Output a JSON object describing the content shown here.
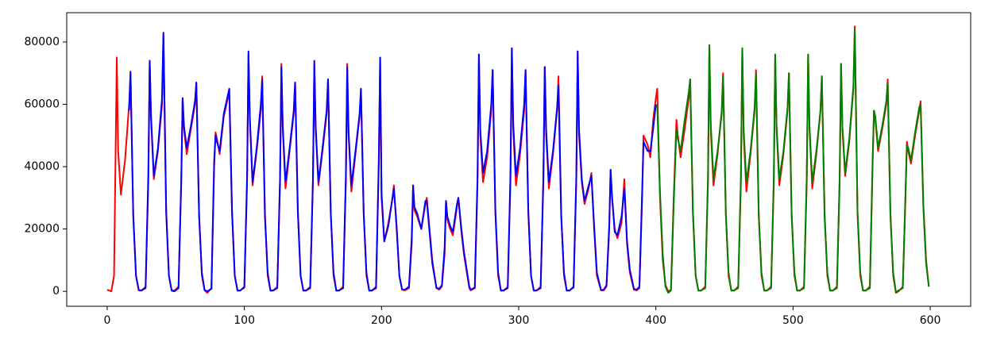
{
  "chart_data": {
    "type": "line",
    "xlim": [
      -29.5,
      629.5
    ],
    "xticks": [
      0,
      100,
      200,
      300,
      400,
      500,
      600
    ],
    "ylim": [
      -4800,
      89400
    ],
    "yticks": [
      0,
      20000,
      40000,
      60000,
      80000
    ],
    "series": [
      {
        "color": "#ff0000",
        "x": [
          0,
          3,
          5,
          6,
          7,
          8,
          10,
          13,
          16,
          17,
          19,
          21,
          23,
          25,
          28,
          30,
          31,
          32,
          34,
          37,
          40,
          41,
          43,
          45,
          47,
          49,
          52,
          54,
          55,
          56,
          58,
          61,
          64,
          65,
          67,
          69,
          71,
          73,
          76,
          78,
          79,
          80,
          82,
          85,
          88,
          89,
          91,
          93,
          95,
          97,
          100,
          102,
          103,
          104,
          106,
          109,
          112,
          113,
          115,
          117,
          119,
          121,
          124,
          126,
          127,
          128,
          130,
          133,
          136,
          137,
          139,
          141,
          143,
          145,
          148,
          150,
          151,
          152,
          154,
          157,
          160,
          161,
          163,
          165,
          167,
          169,
          172,
          174,
          175,
          176,
          178,
          181,
          184,
          185,
          187,
          189,
          191,
          193,
          196,
          198,
          199,
          200,
          202,
          205,
          208,
          209,
          211,
          213,
          215,
          217,
          220,
          222,
          223,
          224,
          226,
          229,
          232,
          233,
          235,
          237,
          240,
          242,
          244,
          246,
          247,
          248,
          250,
          252,
          255,
          256,
          258,
          260,
          264,
          265,
          268,
          270,
          271,
          272,
          274,
          277,
          280,
          281,
          283,
          285,
          287,
          289,
          292,
          294,
          295,
          296,
          298,
          301,
          304,
          305,
          307,
          309,
          311,
          313,
          316,
          318,
          319,
          320,
          322,
          325,
          328,
          329,
          331,
          333,
          335,
          337,
          340,
          342,
          343,
          344,
          346,
          348,
          351,
          353,
          355,
          357,
          360,
          362,
          364,
          366,
          367,
          368,
          370,
          372,
          375,
          377,
          379,
          381,
          384,
          386,
          388,
          390,
          391,
          392,
          394,
          396,
          398,
          400,
          401,
          403,
          405,
          407,
          409,
          411,
          413,
          415,
          416,
          418,
          421,
          424,
          425,
          427,
          429,
          431,
          433,
          436,
          438,
          439,
          440,
          442,
          445,
          448,
          449,
          451,
          453,
          455,
          457,
          460,
          462,
          463,
          464,
          466,
          469,
          472,
          473,
          475,
          477,
          479,
          481,
          484,
          486,
          487,
          488,
          490,
          493,
          496,
          497,
          499,
          501,
          503,
          505,
          508,
          510,
          511,
          512,
          514,
          517,
          520,
          521,
          523,
          525,
          527,
          529,
          532,
          534,
          535,
          536,
          538,
          541,
          544,
          545,
          547,
          549,
          551,
          553,
          556,
          558,
          559,
          560,
          562,
          565,
          568,
          569,
          571,
          573,
          575,
          577,
          580,
          582,
          583,
          584,
          586,
          589,
          592,
          593,
          595,
          597,
          599
        ],
        "values": [
          500,
          0,
          5000,
          40000,
          75000,
          45000,
          31000,
          42000,
          60000,
          70000,
          25000,
          5000,
          300,
          200,
          1500,
          35000,
          74000,
          55000,
          36000,
          45000,
          60000,
          82000,
          25000,
          5000,
          300,
          200,
          1500,
          35000,
          61000,
          52000,
          44000,
          52000,
          60000,
          67000,
          25000,
          5000,
          300,
          -500,
          1000,
          40000,
          51000,
          49000,
          44000,
          56000,
          62000,
          65000,
          25000,
          5000,
          300,
          200,
          1500,
          35000,
          76000,
          55000,
          34000,
          45000,
          58000,
          69000,
          25000,
          5000,
          300,
          200,
          1500,
          35000,
          73000,
          52000,
          33000,
          45000,
          57000,
          67000,
          25000,
          5000,
          300,
          200,
          1500,
          35000,
          73000,
          52000,
          34000,
          45000,
          57000,
          68000,
          25000,
          5000,
          300,
          200,
          1500,
          35000,
          73000,
          50000,
          32000,
          44000,
          56000,
          65000,
          25000,
          5000,
          300,
          200,
          1500,
          40000,
          75000,
          30000,
          16000,
          22000,
          30000,
          34000,
          20000,
          5000,
          500,
          300,
          1000,
          15000,
          34000,
          26000,
          24000,
          20000,
          28000,
          30000,
          20000,
          10000,
          1000,
          500,
          1500,
          12000,
          29000,
          23000,
          20000,
          18000,
          27000,
          30000,
          20000,
          12000,
          1000,
          300,
          1000,
          35000,
          76000,
          50000,
          35000,
          43000,
          58000,
          71000,
          25000,
          5000,
          300,
          200,
          1500,
          35000,
          78000,
          52000,
          34000,
          44000,
          58000,
          71000,
          25000,
          5000,
          300,
          200,
          1500,
          35000,
          72000,
          50000,
          33000,
          44000,
          58000,
          69000,
          25000,
          5000,
          300,
          200,
          1500,
          35000,
          77000,
          50000,
          35000,
          28000,
          33000,
          38000,
          20000,
          5000,
          300,
          300,
          1500,
          20000,
          39000,
          30000,
          20000,
          17000,
          22000,
          36000,
          15000,
          6000,
          500,
          300,
          1000,
          30000,
          50000,
          49000,
          47000,
          43000,
          55000,
          62000,
          65000,
          30000,
          10000,
          2000,
          0,
          500,
          30000,
          55000,
          50000,
          43000,
          52000,
          62000,
          68000,
          25000,
          5000,
          300,
          200,
          1500,
          35000,
          79000,
          52000,
          34000,
          44000,
          58000,
          70000,
          25000,
          5000,
          300,
          200,
          1500,
          35000,
          78000,
          50000,
          32000,
          44000,
          58000,
          71000,
          25000,
          5000,
          300,
          200,
          1500,
          35000,
          76000,
          52000,
          34000,
          44000,
          58000,
          70000,
          25000,
          5000,
          300,
          200,
          1500,
          35000,
          76000,
          52000,
          33000,
          44000,
          58000,
          69000,
          25000,
          5000,
          300,
          200,
          1500,
          35000,
          73000,
          52000,
          37000,
          48000,
          65000,
          85000,
          25000,
          5000,
          300,
          200,
          1500,
          40000,
          58000,
          55000,
          45000,
          52000,
          60000,
          68000,
          25000,
          5000,
          -500,
          0,
          1500,
          30000,
          48000,
          45000,
          41000,
          50000,
          58000,
          61000,
          28000,
          10000,
          1500
        ]
      },
      {
        "color": "#0000ff",
        "x": [
          16,
          17,
          19,
          21,
          23,
          25,
          28,
          30,
          31,
          32,
          34,
          37,
          40,
          41,
          43,
          45,
          47,
          49,
          52,
          54,
          55,
          56,
          58,
          61,
          64,
          65,
          67,
          69,
          71,
          73,
          76,
          78,
          79,
          80,
          82,
          85,
          88,
          89,
          91,
          93,
          95,
          97,
          100,
          102,
          103,
          104,
          106,
          109,
          112,
          113,
          115,
          117,
          119,
          121,
          124,
          126,
          127,
          128,
          130,
          133,
          136,
          137,
          139,
          141,
          143,
          145,
          148,
          150,
          151,
          152,
          154,
          157,
          160,
          161,
          163,
          165,
          167,
          169,
          172,
          174,
          175,
          176,
          178,
          181,
          184,
          185,
          187,
          189,
          191,
          193,
          196,
          198,
          199,
          200,
          202,
          205,
          208,
          209,
          211,
          213,
          215,
          217,
          220,
          222,
          223,
          224,
          226,
          229,
          232,
          233,
          235,
          237,
          240,
          242,
          244,
          246,
          247,
          248,
          250,
          252,
          255,
          256,
          258,
          260,
          264,
          265,
          268,
          270,
          271,
          272,
          274,
          277,
          280,
          281,
          283,
          285,
          287,
          289,
          292,
          294,
          295,
          296,
          298,
          301,
          304,
          305,
          307,
          309,
          311,
          313,
          316,
          318,
          319,
          320,
          322,
          325,
          328,
          329,
          331,
          333,
          335,
          337,
          340,
          342,
          343,
          344,
          346,
          348,
          351,
          353,
          355,
          357,
          360,
          362,
          364,
          366,
          367,
          368,
          370,
          372,
          375,
          377,
          379,
          381,
          384,
          386,
          388,
          390,
          391,
          392,
          394,
          396,
          398,
          400
        ],
        "values": [
          58000,
          70500,
          24000,
          5000,
          400,
          300,
          1000,
          38000,
          74000,
          56000,
          37000,
          46000,
          62000,
          83000,
          26000,
          5000,
          200,
          0,
          1000,
          36000,
          62000,
          53000,
          46000,
          53000,
          61000,
          67000,
          24000,
          6000,
          400,
          0,
          800,
          42000,
          50000,
          48000,
          45000,
          57000,
          63000,
          65000,
          26000,
          5000,
          200,
          300,
          1200,
          37000,
          77000,
          56000,
          35000,
          46000,
          60000,
          68000,
          24000,
          6000,
          200,
          300,
          1000,
          36000,
          72000,
          53000,
          35000,
          46000,
          58000,
          67000,
          26000,
          5000,
          200,
          300,
          1000,
          36000,
          74000,
          53000,
          35000,
          46000,
          58000,
          68000,
          25000,
          6000,
          200,
          300,
          1000,
          37000,
          72000,
          51000,
          34000,
          45000,
          57000,
          65000,
          25000,
          6000,
          200,
          300,
          1000,
          42000,
          75000,
          32000,
          16000,
          21000,
          30000,
          33000,
          21000,
          5000,
          600,
          500,
          1500,
          17000,
          34000,
          27000,
          25000,
          20000,
          29000,
          29000,
          19000,
          9000,
          1200,
          800,
          2000,
          14000,
          29000,
          24000,
          21000,
          19000,
          28000,
          30000,
          21000,
          13000,
          1500,
          500,
          1200,
          37000,
          76000,
          52000,
          38000,
          45000,
          60000,
          71000,
          26000,
          6000,
          200,
          300,
          1000,
          38000,
          78000,
          54000,
          37000,
          46000,
          60000,
          71000,
          26000,
          5000,
          200,
          300,
          1000,
          37000,
          72000,
          52000,
          35000,
          45000,
          59000,
          66000,
          24000,
          6000,
          200,
          300,
          1200,
          37000,
          77000,
          52000,
          36000,
          29000,
          34000,
          37000,
          21000,
          6000,
          400,
          500,
          2000,
          21000,
          39000,
          31000,
          19000,
          18000,
          24000,
          33000,
          16000,
          7000,
          800,
          500,
          1500,
          32000,
          48000,
          47000,
          45000,
          45000,
          52000,
          60000
        ]
      },
      {
        "color": "#008000",
        "x": [
          401,
          403,
          405,
          407,
          409,
          411,
          413,
          415,
          416,
          418,
          421,
          424,
          425,
          427,
          429,
          431,
          433,
          436,
          438,
          439,
          440,
          442,
          445,
          448,
          449,
          451,
          453,
          455,
          457,
          460,
          462,
          463,
          464,
          466,
          469,
          472,
          473,
          475,
          477,
          479,
          481,
          484,
          486,
          487,
          488,
          490,
          493,
          496,
          497,
          499,
          501,
          503,
          505,
          508,
          510,
          511,
          512,
          514,
          517,
          520,
          521,
          523,
          525,
          527,
          529,
          532,
          534,
          535,
          536,
          538,
          541,
          544,
          545,
          547,
          549,
          551,
          553,
          556,
          558,
          559,
          560,
          562,
          565,
          568,
          569,
          571,
          573,
          575,
          577,
          580,
          582,
          583,
          584,
          586,
          589,
          592,
          593,
          595,
          597,
          599
        ],
        "values": [
          60000,
          32000,
          12000,
          1500,
          -500,
          300,
          28000,
          52000,
          49000,
          45000,
          55000,
          64000,
          68000,
          26000,
          5000,
          200,
          300,
          1000,
          37000,
          79000,
          54000,
          36000,
          45000,
          57000,
          69000,
          25000,
          6000,
          200,
          300,
          1000,
          37000,
          78000,
          52000,
          35000,
          45000,
          59000,
          70000,
          24000,
          6000,
          200,
          300,
          1000,
          37000,
          76000,
          53000,
          36000,
          45000,
          59000,
          70000,
          24000,
          6000,
          200,
          300,
          1000,
          37000,
          76000,
          53000,
          35000,
          45000,
          58000,
          69000,
          24000,
          6000,
          200,
          300,
          1000,
          37000,
          73000,
          53000,
          38000,
          49000,
          66000,
          84000,
          26000,
          6000,
          200,
          300,
          1000,
          42000,
          58000,
          56000,
          46000,
          53000,
          61000,
          67000,
          24000,
          6000,
          -300,
          300,
          1000,
          32000,
          47000,
          46000,
          42000,
          51000,
          59000,
          60000,
          27000,
          9000,
          1500
        ]
      }
    ]
  }
}
